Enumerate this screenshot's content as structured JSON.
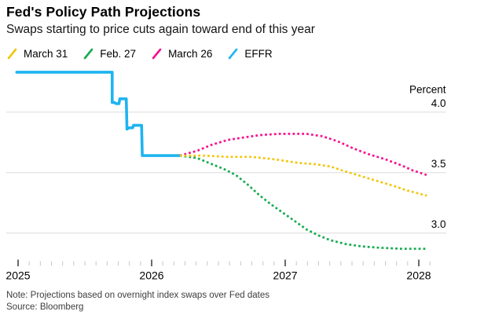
{
  "header": {
    "title": "Fed's Policy Path Projections",
    "subtitle": "Swaps starting to price cuts again toward end of this year"
  },
  "legend": {
    "items": [
      {
        "label": "March 31",
        "color": "#f3c50c"
      },
      {
        "label": "Feb. 27",
        "color": "#14ab4f"
      },
      {
        "label": "March 26",
        "color": "#f5128f"
      },
      {
        "label": "EFFR",
        "color": "#1eb4f0"
      }
    ]
  },
  "chart_data": {
    "type": "line",
    "title": "Fed's Policy Path Projections",
    "subtitle": "Swaps starting to price cuts again toward end of this year",
    "ylabel": "Percent",
    "xlabel": "",
    "x_range": [
      2024.99,
      2028.25
    ],
    "y_range": [
      2.75,
      4.45
    ],
    "grid": "horizontal-only",
    "legend_position": "top",
    "y_ticks": [
      {
        "label": "4.0",
        "value": 4.0
      },
      {
        "label": "3.5",
        "value": 3.5
      },
      {
        "label": "3.0",
        "value": 3.0
      }
    ],
    "x_ticks": [
      {
        "label": "2025",
        "value": 2025
      },
      {
        "label": "2026",
        "value": 2026
      },
      {
        "label": "2027",
        "value": 2027
      },
      {
        "label": "2028",
        "value": 2028
      }
    ],
    "minor_x_tick_interval_years": 0.0833,
    "series": [
      {
        "name": "March 31",
        "color": "#f3c50c",
        "style": "dotted",
        "points": [
          [
            2026.21,
            3.64
          ],
          [
            2026.39,
            3.64
          ],
          [
            2026.57,
            3.63
          ],
          [
            2026.75,
            3.63
          ],
          [
            2026.92,
            3.61
          ],
          [
            2027.1,
            3.58
          ],
          [
            2027.22,
            3.57
          ],
          [
            2027.34,
            3.55
          ],
          [
            2027.45,
            3.51
          ],
          [
            2027.57,
            3.47
          ],
          [
            2027.69,
            3.43
          ],
          [
            2027.81,
            3.39
          ],
          [
            2027.92,
            3.35
          ],
          [
            2028.06,
            3.31
          ]
        ]
      },
      {
        "name": "Feb. 27",
        "color": "#14ab4f",
        "style": "dotted",
        "points": [
          [
            2026.21,
            3.64
          ],
          [
            2026.34,
            3.62
          ],
          [
            2026.45,
            3.57
          ],
          [
            2026.54,
            3.53
          ],
          [
            2026.63,
            3.48
          ],
          [
            2026.72,
            3.4
          ],
          [
            2026.81,
            3.31
          ],
          [
            2026.89,
            3.24
          ],
          [
            2026.98,
            3.17
          ],
          [
            2027.07,
            3.1
          ],
          [
            2027.16,
            3.03
          ],
          [
            2027.25,
            2.98
          ],
          [
            2027.34,
            2.94
          ],
          [
            2027.45,
            2.91
          ],
          [
            2027.57,
            2.89
          ],
          [
            2027.69,
            2.88
          ],
          [
            2027.87,
            2.87
          ],
          [
            2028.06,
            2.87
          ]
        ]
      },
      {
        "name": "March 26",
        "color": "#f5128f",
        "style": "dotted",
        "points": [
          [
            2026.21,
            3.64
          ],
          [
            2026.34,
            3.68
          ],
          [
            2026.45,
            3.73
          ],
          [
            2026.57,
            3.77
          ],
          [
            2026.69,
            3.79
          ],
          [
            2026.81,
            3.81
          ],
          [
            2026.95,
            3.82
          ],
          [
            2027.16,
            3.82
          ],
          [
            2027.28,
            3.8
          ],
          [
            2027.39,
            3.76
          ],
          [
            2027.51,
            3.7
          ],
          [
            2027.63,
            3.65
          ],
          [
            2027.75,
            3.61
          ],
          [
            2027.87,
            3.56
          ],
          [
            2027.95,
            3.52
          ],
          [
            2028.06,
            3.48
          ]
        ]
      },
      {
        "name": "EFFR",
        "color": "#1eb4f0",
        "style": "solid",
        "points": [
          [
            2024.99,
            4.33
          ],
          [
            2025.705,
            4.33
          ],
          [
            2025.705,
            4.08
          ],
          [
            2025.72,
            4.08
          ],
          [
            2025.735,
            4.07
          ],
          [
            2025.755,
            4.07
          ],
          [
            2025.762,
            4.11
          ],
          [
            2025.81,
            4.11
          ],
          [
            2025.815,
            3.86
          ],
          [
            2025.83,
            3.87
          ],
          [
            2025.858,
            3.87
          ],
          [
            2025.864,
            3.89
          ],
          [
            2025.925,
            3.89
          ],
          [
            2025.93,
            3.64
          ],
          [
            2026.21,
            3.64
          ]
        ]
      }
    ]
  },
  "footer": {
    "note": "Note: Projections based on overnight index swaps over Fed dates",
    "source": "Source: Bloomberg"
  }
}
